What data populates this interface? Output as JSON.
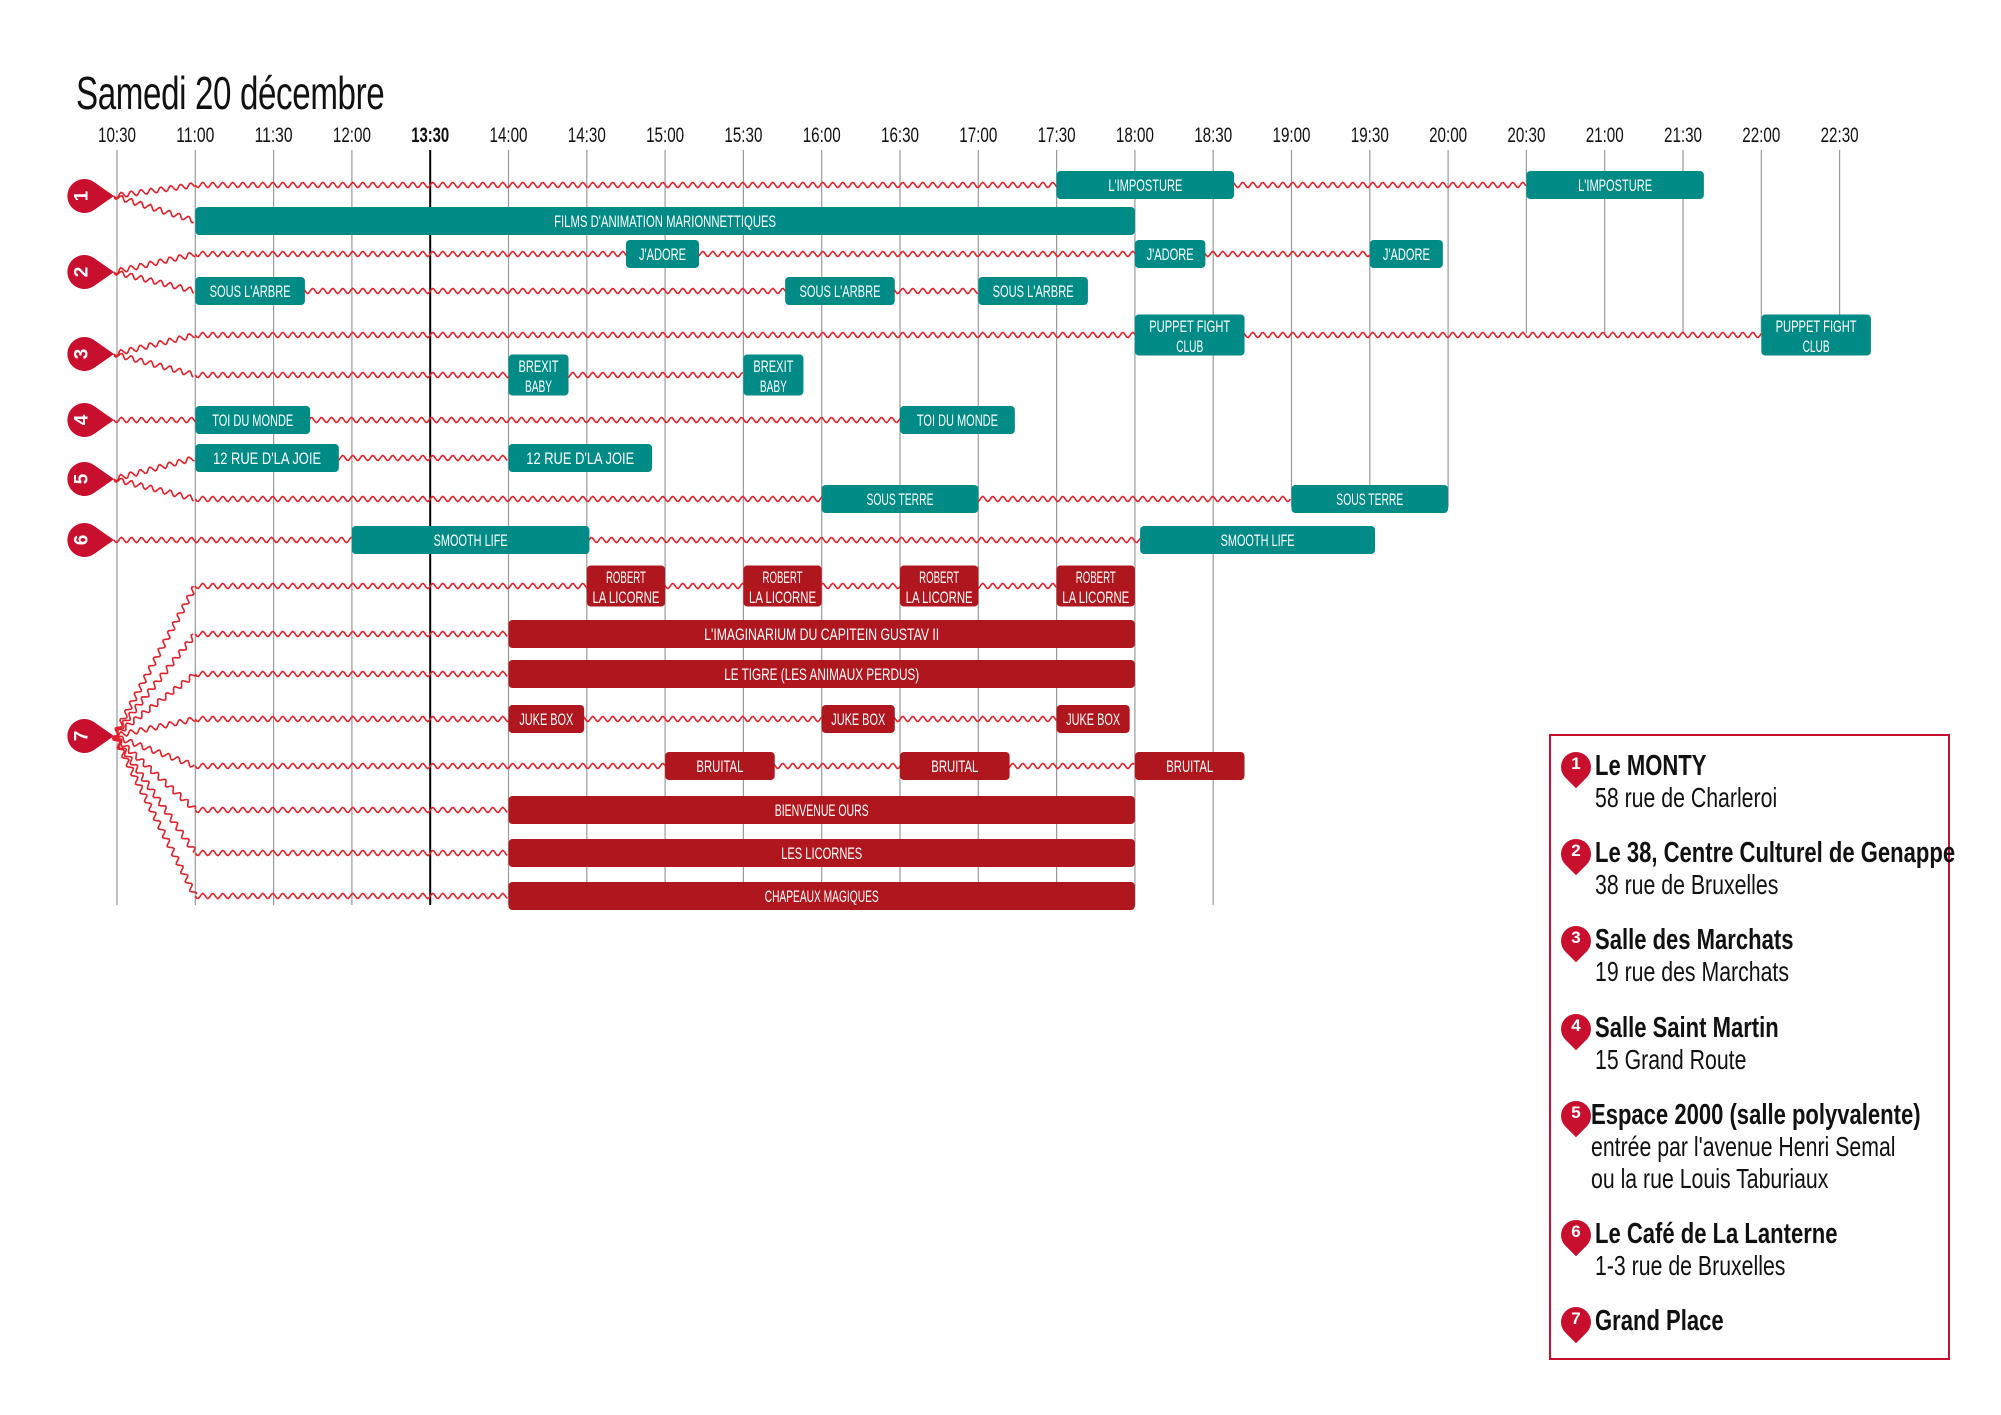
{
  "title": "Samedi 20 décembre",
  "colors": {
    "teal": "#008b87",
    "red_event": "#b0161d",
    "marker": "#c8102e",
    "wave": "#e0202a",
    "grid": "#9a9a9a"
  },
  "chart_data": {
    "type": "timeline",
    "ticks": [
      "10:30",
      "11:00",
      "11:30",
      "12:00",
      "13:30",
      "14:00",
      "14:30",
      "15:00",
      "15:30",
      "16:00",
      "16:30",
      "17:00",
      "17:30",
      "18:00",
      "18:30",
      "19:00",
      "19:30",
      "20:00",
      "20:30",
      "21:00",
      "21:30",
      "22:00",
      "22:30"
    ],
    "highlight_tick": "13:30",
    "venues": [
      {
        "num": "1",
        "rows": [
          {
            "color": "teal",
            "events": [
              {
                "label": [
                  "L'IMPOSTURE"
                ],
                "start": "17:30",
                "end": "18:38"
              },
              {
                "label": [
                  "L'IMPOSTURE"
                ],
                "start": "20:30",
                "end": "21:38"
              }
            ]
          },
          {
            "color": "teal",
            "events": [
              {
                "label": [
                  "FILMS D'ANIMATION MARIONNETTIQUES"
                ],
                "start": "11:00",
                "end": "18:00"
              }
            ]
          }
        ]
      },
      {
        "num": "2",
        "rows": [
          {
            "color": "teal",
            "events": [
              {
                "label": [
                  "J'ADORE"
                ],
                "start": "14:45",
                "end": "15:13"
              },
              {
                "label": [
                  "J'ADORE"
                ],
                "start": "18:00",
                "end": "18:27"
              },
              {
                "label": [
                  "J'ADORE"
                ],
                "start": "19:30",
                "end": "19:58"
              }
            ]
          },
          {
            "color": "teal",
            "events": [
              {
                "label": [
                  "SOUS L'ARBRE"
                ],
                "start": "11:00",
                "end": "11:42"
              },
              {
                "label": [
                  "SOUS L'ARBRE"
                ],
                "start": "15:46",
                "end": "16:28"
              },
              {
                "label": [
                  "SOUS L'ARBRE"
                ],
                "start": "17:00",
                "end": "17:42"
              }
            ]
          }
        ]
      },
      {
        "num": "3",
        "rows": [
          {
            "color": "teal",
            "events": [
              {
                "label": [
                  "PUPPET FIGHT",
                  "CLUB"
                ],
                "start": "18:00",
                "end": "18:42"
              },
              {
                "label": [
                  "PUPPET FIGHT",
                  "CLUB"
                ],
                "start": "22:00",
                "end": "22:42"
              }
            ]
          },
          {
            "color": "teal",
            "events": [
              {
                "label": [
                  "BREXIT",
                  "BABY"
                ],
                "start": "14:00",
                "end": "14:23"
              },
              {
                "label": [
                  "BREXIT",
                  "BABY"
                ],
                "start": "15:30",
                "end": "15:53"
              }
            ]
          }
        ]
      },
      {
        "num": "4",
        "rows": [
          {
            "color": "teal",
            "direct": true,
            "events": [
              {
                "label": [
                  "TOI DU MONDE"
                ],
                "start": "11:00",
                "end": "11:44"
              },
              {
                "label": [
                  "TOI DU MONDE"
                ],
                "start": "16:30",
                "end": "17:14"
              }
            ]
          }
        ]
      },
      {
        "num": "5",
        "rows": [
          {
            "color": "teal",
            "events": [
              {
                "label": [
                  "12 RUE D'LA JOIE"
                ],
                "start": "11:00",
                "end": "11:55"
              },
              {
                "label": [
                  "12 RUE D'LA JOIE"
                ],
                "start": "14:00",
                "end": "14:55"
              }
            ]
          },
          {
            "color": "teal",
            "events": [
              {
                "label": [
                  "SOUS TERRE"
                ],
                "start": "16:00",
                "end": "17:00"
              },
              {
                "label": [
                  "SOUS TERRE"
                ],
                "start": "19:00",
                "end": "20:00"
              }
            ]
          }
        ]
      },
      {
        "num": "6",
        "rows": [
          {
            "color": "teal",
            "direct": true,
            "events": [
              {
                "label": [
                  "SMOOTH LIFE"
                ],
                "start": "12:00",
                "end": "14:31"
              },
              {
                "label": [
                  "SMOOTH LIFE"
                ],
                "start": "18:02",
                "end": "19:32"
              }
            ]
          }
        ]
      },
      {
        "num": "7",
        "rows": [
          {
            "color": "red_event",
            "events": [
              {
                "label": [
                  "ROBERT",
                  "LA LICORNE"
                ],
                "start": "14:30",
                "end": "15:00"
              },
              {
                "label": [
                  "ROBERT",
                  "LA LICORNE"
                ],
                "start": "15:30",
                "end": "16:00"
              },
              {
                "label": [
                  "ROBERT",
                  "LA LICORNE"
                ],
                "start": "16:30",
                "end": "17:00"
              },
              {
                "label": [
                  "ROBERT",
                  "LA LICORNE"
                ],
                "start": "17:30",
                "end": "18:00"
              }
            ]
          },
          {
            "color": "red_event",
            "events": [
              {
                "label": [
                  "L'IMAGINARIUM DU CAPITEIN GUSTAV II"
                ],
                "start": "14:00",
                "end": "18:00"
              }
            ]
          },
          {
            "color": "red_event",
            "events": [
              {
                "label": [
                  "LE TIGRE (LES ANIMAUX PERDUS)"
                ],
                "start": "14:00",
                "end": "18:00"
              }
            ]
          },
          {
            "color": "red_event",
            "events": [
              {
                "label": [
                  "JUKE BOX"
                ],
                "start": "14:00",
                "end": "14:29"
              },
              {
                "label": [
                  "JUKE BOX"
                ],
                "start": "16:00",
                "end": "16:28"
              },
              {
                "label": [
                  "JUKE BOX"
                ],
                "start": "17:30",
                "end": "17:58"
              }
            ]
          },
          {
            "color": "red_event",
            "events": [
              {
                "label": [
                  "BRUITAL"
                ],
                "start": "15:00",
                "end": "15:42"
              },
              {
                "label": [
                  "BRUITAL"
                ],
                "start": "16:30",
                "end": "17:12"
              },
              {
                "label": [
                  "BRUITAL"
                ],
                "start": "18:00",
                "end": "18:42"
              }
            ]
          },
          {
            "color": "red_event",
            "events": [
              {
                "label": [
                  "BIENVENUE OURS"
                ],
                "start": "14:00",
                "end": "18:00"
              }
            ]
          },
          {
            "color": "red_event",
            "events": [
              {
                "label": [
                  "LES LICORNES"
                ],
                "start": "14:00",
                "end": "18:00"
              }
            ]
          },
          {
            "color": "red_event",
            "events": [
              {
                "label": [
                  "CHAPEAUX MAGIQUES"
                ],
                "start": "14:00",
                "end": "18:00"
              }
            ]
          }
        ]
      }
    ]
  },
  "legend": [
    {
      "num": "1",
      "name": "Le MONTY",
      "address": [
        "58 rue de Charleroi"
      ]
    },
    {
      "num": "2",
      "name": "Le 38, Centre Culturel de Genappe",
      "address": [
        "38 rue de Bruxelles"
      ]
    },
    {
      "num": "3",
      "name": "Salle des Marchats",
      "address": [
        "19 rue des Marchats"
      ]
    },
    {
      "num": "4",
      "name": "Salle Saint Martin",
      "address": [
        "15 Grand Route"
      ]
    },
    {
      "num": "5",
      "name": " Espace 2000 (salle polyvalente)",
      "address": [
        "entrée par l'avenue Henri Semal",
        "ou la rue Louis Taburiaux"
      ]
    },
    {
      "num": "6",
      "name": "Le Café de La Lanterne",
      "address": [
        "1-3 rue de Bruxelles"
      ]
    },
    {
      "num": "7",
      "name": "Grand Place",
      "address": []
    }
  ]
}
